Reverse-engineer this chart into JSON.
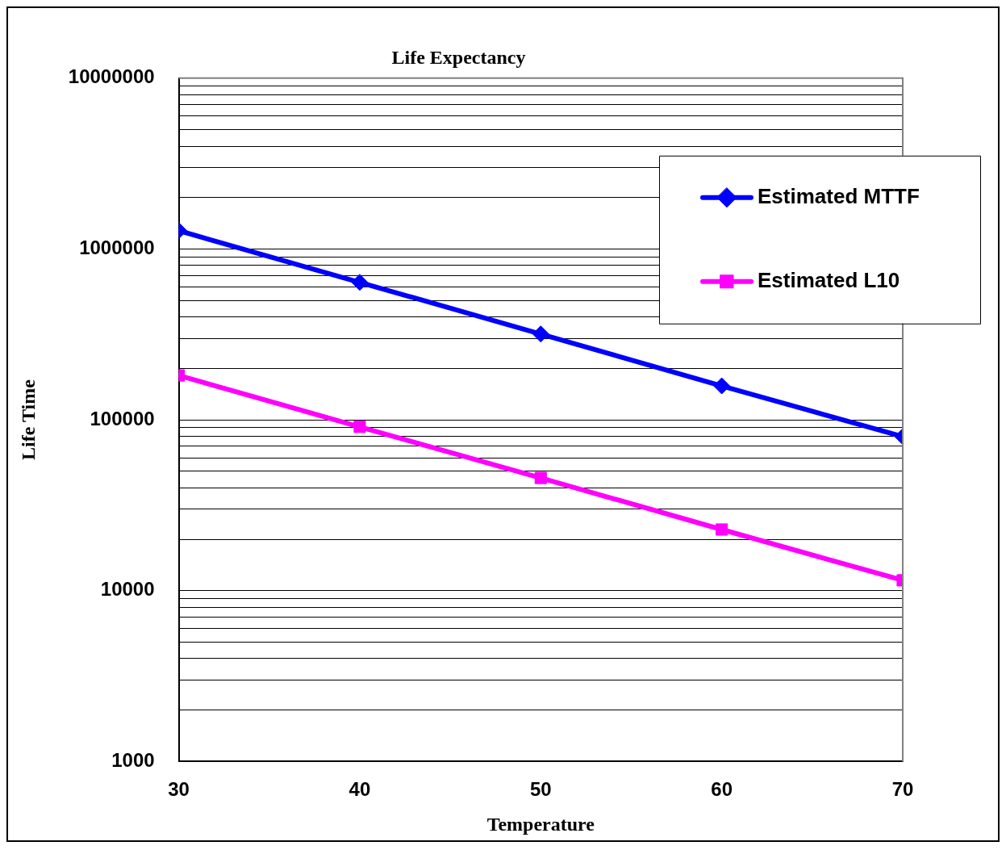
{
  "chart_data": {
    "type": "line",
    "title": "Life Expectancy",
    "xlabel": "Temperature",
    "ylabel": "Life Time",
    "x": [
      30,
      40,
      50,
      60,
      70
    ],
    "series": [
      {
        "name": "Estimated MTTF",
        "color": "#0000ff",
        "marker": "diamond",
        "values": [
          1280000,
          638000,
          318000,
          158000,
          79800
        ]
      },
      {
        "name": "Estimated L10",
        "color": "#ff00ff",
        "marker": "square",
        "values": [
          182000,
          91000,
          45700,
          22800,
          11500
        ]
      }
    ],
    "log": "y",
    "xlim": [
      30,
      70
    ],
    "xticks": [
      30,
      40,
      50,
      60,
      70
    ],
    "ylim": [
      1000,
      10000000
    ],
    "yticks": [
      1000,
      {
        "value": 2000,
        "label": null
      },
      {
        "value": 3000,
        "label": null
      },
      {
        "value": 4000,
        "label": null
      },
      {
        "value": 5000,
        "label": null
      },
      {
        "value": 6000,
        "label": null
      },
      {
        "value": 7000,
        "label": null
      },
      {
        "value": 8000,
        "label": null
      },
      {
        "value": 9000,
        "label": null
      },
      10000,
      {
        "value": 20000,
        "label": null
      },
      {
        "value": 30000,
        "label": null
      },
      {
        "value": 40000,
        "label": null
      },
      {
        "value": 50000,
        "label": null
      },
      {
        "value": 60000,
        "label": null
      },
      {
        "value": 70000,
        "label": null
      },
      {
        "value": 80000,
        "label": null
      },
      {
        "value": 90000,
        "label": null
      },
      100000,
      {
        "value": 200000,
        "label": null
      },
      {
        "value": 300000,
        "label": null
      },
      {
        "value": 400000,
        "label": null
      },
      {
        "value": 500000,
        "label": null
      },
      {
        "value": 600000,
        "label": null
      },
      {
        "value": 700000,
        "label": null
      },
      {
        "value": 800000,
        "label": null
      },
      {
        "value": 900000,
        "label": null
      },
      1000000,
      {
        "value": 2000000,
        "label": null
      },
      {
        "value": 3000000,
        "label": null
      },
      {
        "value": 4000000,
        "label": null
      },
      {
        "value": 5000000,
        "label": null
      },
      {
        "value": 6000000,
        "label": null
      },
      {
        "value": 7000000,
        "label": null
      },
      {
        "value": 8000000,
        "label": null
      },
      {
        "value": 9000000,
        "label": null
      },
      10000000
    ],
    "grid": "y",
    "legend": "top right",
    "line_style": "solid"
  }
}
